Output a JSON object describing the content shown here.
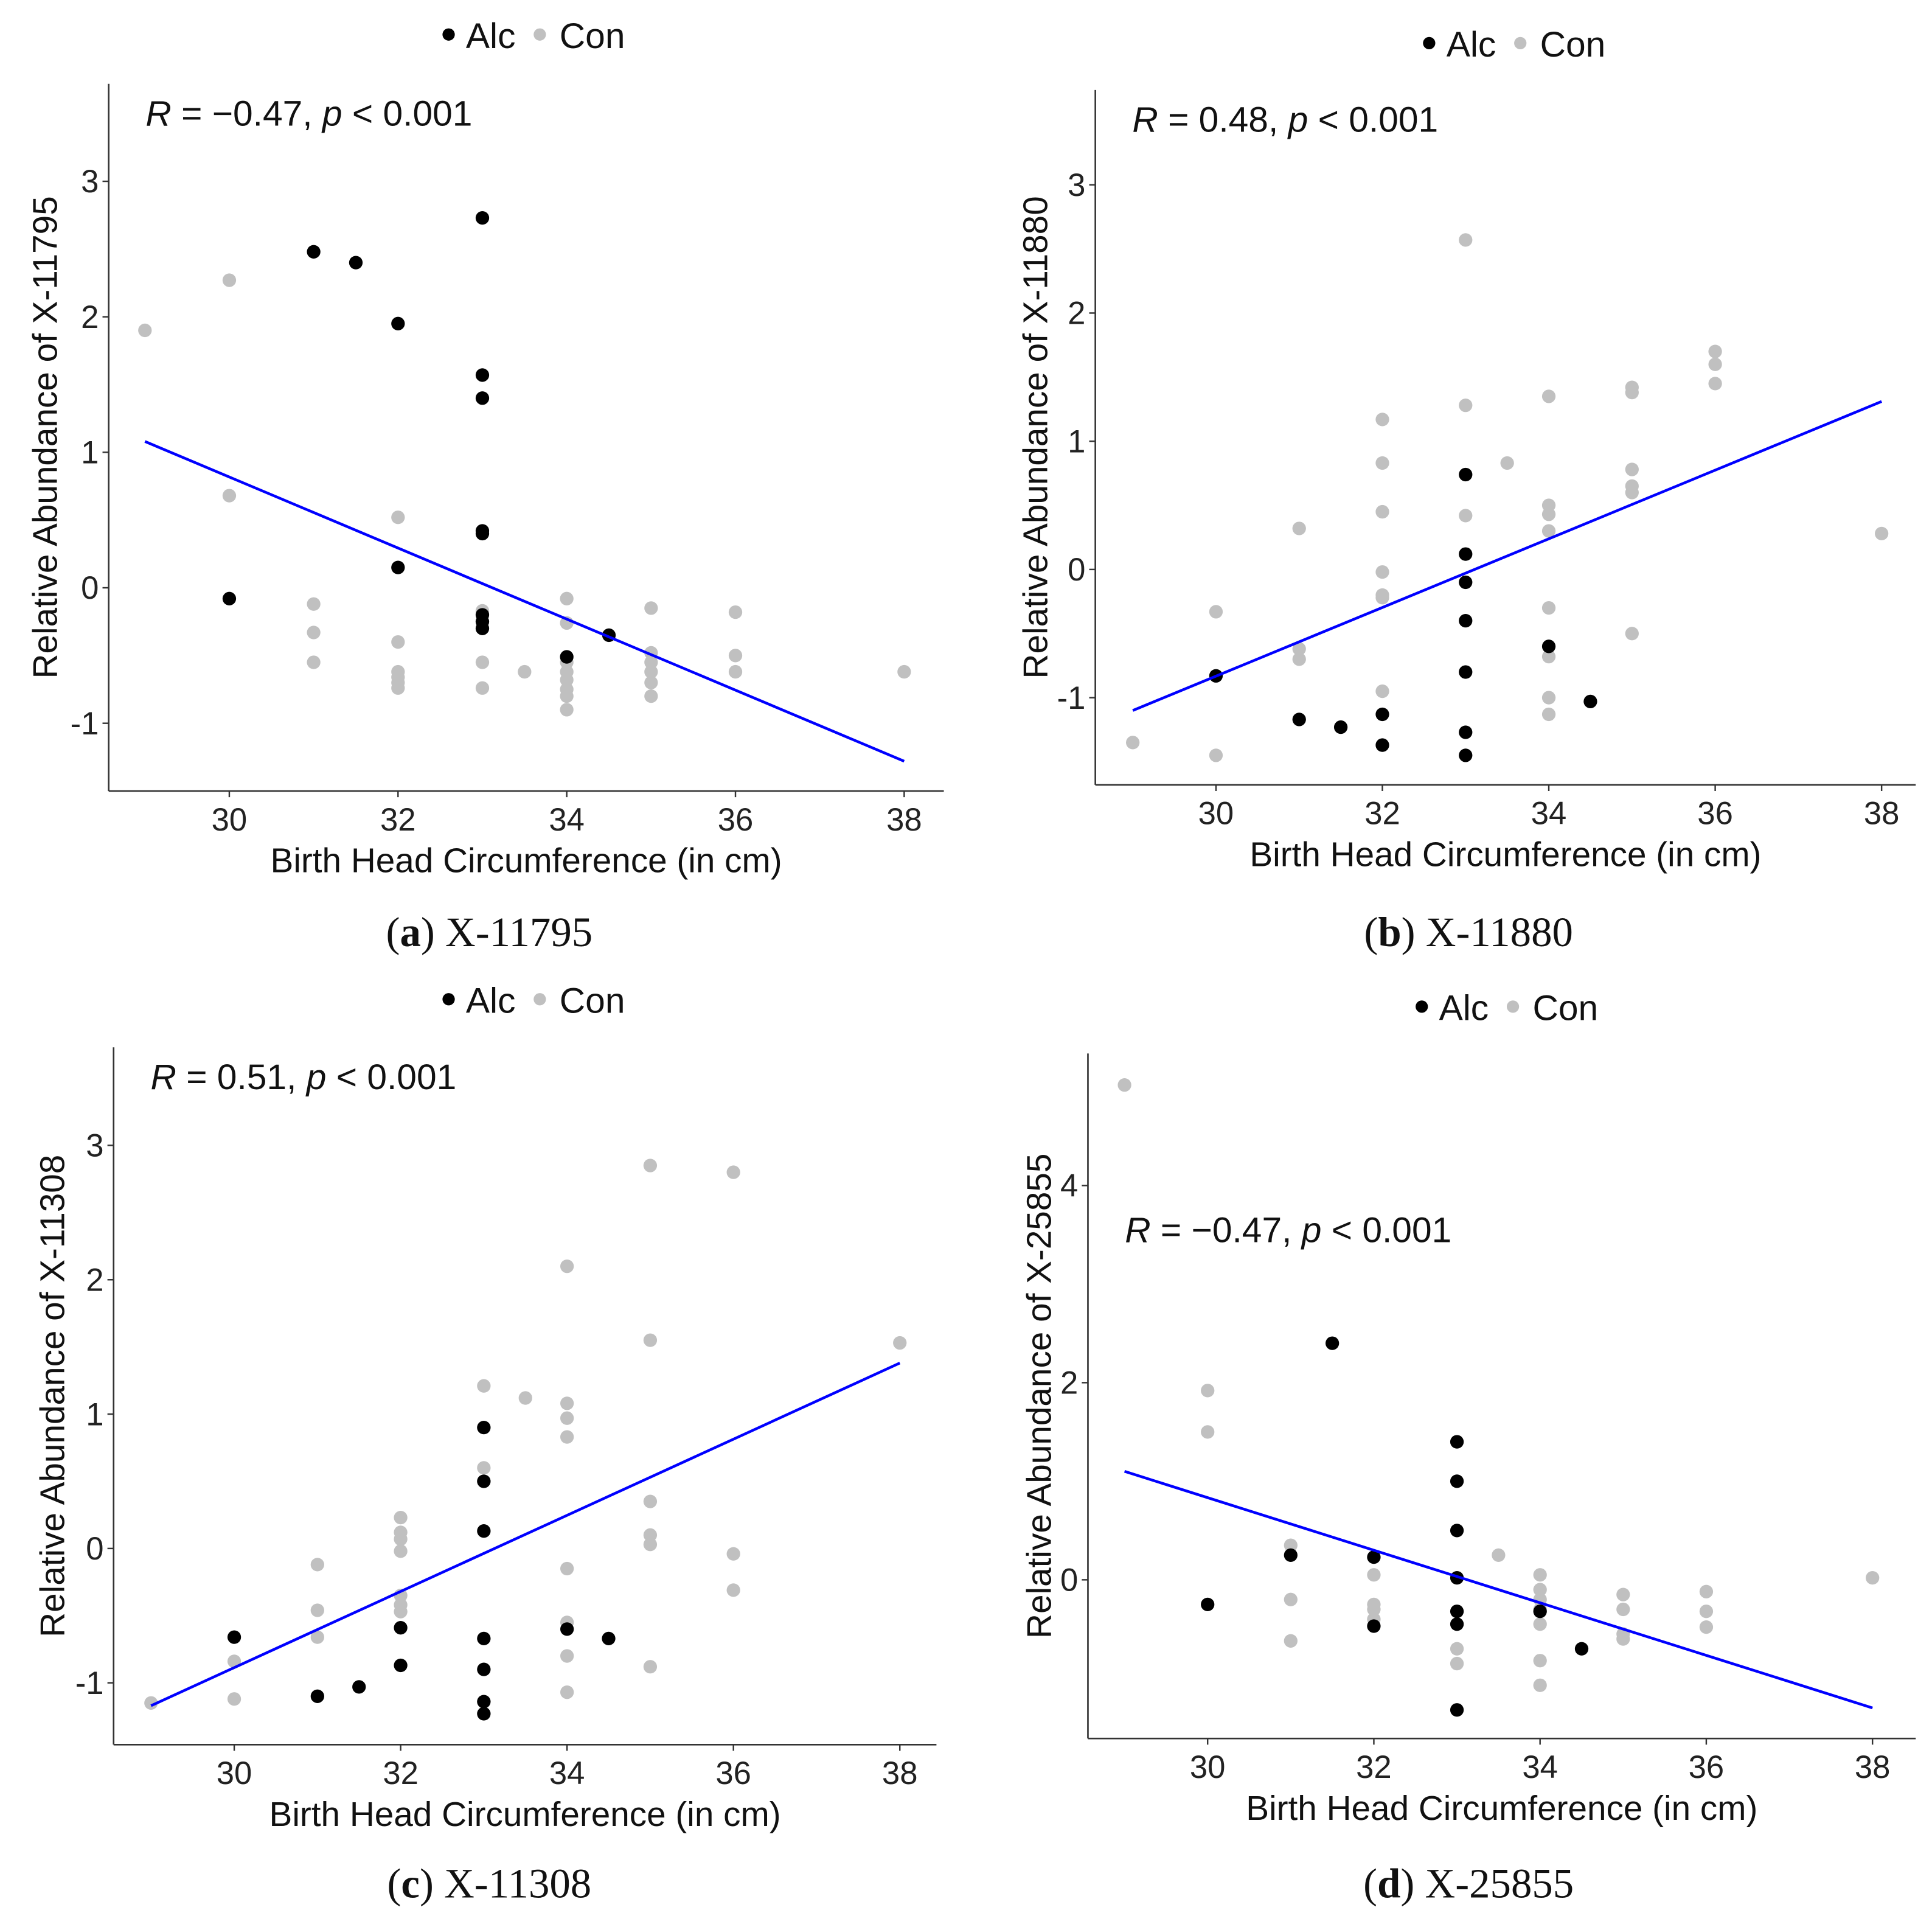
{
  "colors": {
    "alc": "#000000",
    "con": "#c0c0c0",
    "fit": "#0000ff"
  },
  "chart_data": [
    {
      "type": "scatter",
      "caption_letter": "a",
      "caption": "X-11795",
      "stat": "R = −0.47, p < 0.001",
      "xlabel": "Birth Head Circumference (in cm)",
      "ylabel": "Relative Abundance of X-11795",
      "legend": [
        "Alc",
        "Con"
      ],
      "legend_position": "top",
      "xlim": [
        28.57,
        38.47
      ],
      "ylim": [
        -1.5,
        3.72
      ],
      "xticks": [
        30,
        32,
        34,
        36,
        38
      ],
      "yticks": [
        -1,
        0,
        1,
        2,
        3
      ],
      "fit": [
        [
          29,
          1.08
        ],
        [
          38,
          -1.28
        ]
      ],
      "series": [
        {
          "name": "Alc",
          "points": [
            [
              30,
              -0.08
            ],
            [
              31,
              2.48
            ],
            [
              31.5,
              2.4
            ],
            [
              32,
              1.95
            ],
            [
              32,
              0.15
            ],
            [
              33,
              2.73
            ],
            [
              33,
              1.57
            ],
            [
              33,
              1.4
            ],
            [
              33,
              0.42
            ],
            [
              33,
              0.4
            ],
            [
              33,
              -0.2
            ],
            [
              33,
              -0.25
            ],
            [
              33,
              -0.3
            ],
            [
              34,
              -0.51
            ],
            [
              34.5,
              -0.35
            ]
          ]
        },
        {
          "name": "Con",
          "points": [
            [
              29,
              1.9
            ],
            [
              30,
              2.27
            ],
            [
              30,
              0.68
            ],
            [
              31,
              -0.12
            ],
            [
              31,
              -0.33
            ],
            [
              31,
              -0.55
            ],
            [
              32,
              0.52
            ],
            [
              32,
              -0.4
            ],
            [
              32,
              -0.62
            ],
            [
              32,
              -0.66
            ],
            [
              32,
              -0.7
            ],
            [
              32,
              -0.74
            ],
            [
              33,
              -0.17
            ],
            [
              33,
              -0.55
            ],
            [
              33,
              -0.74
            ],
            [
              33.5,
              -0.62
            ],
            [
              34,
              -0.08
            ],
            [
              34,
              -0.26
            ],
            [
              34,
              -0.55
            ],
            [
              34,
              -0.62
            ],
            [
              34,
              -0.68
            ],
            [
              34,
              -0.75
            ],
            [
              34,
              -0.8
            ],
            [
              34,
              -0.9
            ],
            [
              35,
              -0.15
            ],
            [
              35,
              -0.48
            ],
            [
              35,
              -0.55
            ],
            [
              35,
              -0.62
            ],
            [
              35,
              -0.7
            ],
            [
              35,
              -0.8
            ],
            [
              36,
              -0.18
            ],
            [
              36,
              -0.5
            ],
            [
              36,
              -0.62
            ],
            [
              38,
              -0.62
            ]
          ]
        }
      ]
    },
    {
      "type": "scatter",
      "caption_letter": "b",
      "caption": "X-11880",
      "stat": "R = 0.48, p < 0.001",
      "xlabel": "Birth Head Circumference (in cm)",
      "ylabel": "Relative Abundance of X-11880",
      "legend": [
        "Alc",
        "Con"
      ],
      "legend_position": "top",
      "xlim": [
        28.55,
        38.41
      ],
      "ylim": [
        -1.68,
        3.74
      ],
      "xticks": [
        30,
        32,
        34,
        36,
        38
      ],
      "yticks": [
        -1,
        0,
        1,
        2,
        3
      ],
      "fit": [
        [
          29,
          -1.1
        ],
        [
          38,
          1.31
        ]
      ],
      "series": [
        {
          "name": "Alc",
          "points": [
            [
              30,
              -0.83
            ],
            [
              31,
              -1.17
            ],
            [
              31.5,
              -1.23
            ],
            [
              32,
              -1.13
            ],
            [
              32,
              -1.37
            ],
            [
              33,
              0.74
            ],
            [
              33,
              0.12
            ],
            [
              33,
              -0.1
            ],
            [
              33,
              -0.4
            ],
            [
              33,
              -0.8
            ],
            [
              33,
              -1.27
            ],
            [
              33,
              -1.45
            ],
            [
              34,
              -0.6
            ],
            [
              34.5,
              -1.03
            ]
          ]
        },
        {
          "name": "Con",
          "points": [
            [
              29,
              -1.35
            ],
            [
              30,
              -0.33
            ],
            [
              30,
              -1.45
            ],
            [
              31,
              0.32
            ],
            [
              31,
              -0.62
            ],
            [
              31,
              -0.7
            ],
            [
              32,
              1.17
            ],
            [
              32,
              0.83
            ],
            [
              32,
              0.45
            ],
            [
              32,
              -0.02
            ],
            [
              32,
              -0.2
            ],
            [
              32,
              -0.22
            ],
            [
              32,
              -0.95
            ],
            [
              33,
              2.57
            ],
            [
              33,
              1.28
            ],
            [
              33,
              0.42
            ],
            [
              33.5,
              0.83
            ],
            [
              34,
              1.35
            ],
            [
              34,
              0.5
            ],
            [
              34,
              0.43
            ],
            [
              34,
              0.3
            ],
            [
              34,
              -0.3
            ],
            [
              34,
              -0.68
            ],
            [
              34,
              -1.0
            ],
            [
              34,
              -1.13
            ],
            [
              35,
              1.42
            ],
            [
              35,
              1.38
            ],
            [
              35,
              0.78
            ],
            [
              35,
              0.65
            ],
            [
              35,
              0.6
            ],
            [
              35,
              -0.5
            ],
            [
              36,
              1.7
            ],
            [
              36,
              1.6
            ],
            [
              36,
              1.45
            ],
            [
              38,
              0.28
            ]
          ]
        }
      ]
    },
    {
      "type": "scatter",
      "caption_letter": "c",
      "caption": "X-11308",
      "stat": "R = 0.51, p < 0.001",
      "xlabel": "Birth Head Circumference (in cm)",
      "ylabel": "Relative Abundance of X-11308",
      "legend": [
        "Alc",
        "Con"
      ],
      "legend_position": "top",
      "xlim": [
        28.55,
        38.44
      ],
      "ylim": [
        -1.46,
        3.73
      ],
      "xticks": [
        30,
        32,
        34,
        36,
        38
      ],
      "yticks": [
        -1,
        0,
        1,
        2,
        3
      ],
      "fit": [
        [
          29,
          -1.17
        ],
        [
          38,
          1.38
        ]
      ],
      "series": [
        {
          "name": "Alc",
          "points": [
            [
              30,
              -0.66
            ],
            [
              31,
              -1.1
            ],
            [
              31.5,
              -1.03
            ],
            [
              32,
              -0.59
            ],
            [
              32,
              -0.87
            ],
            [
              33,
              0.9
            ],
            [
              33,
              0.5
            ],
            [
              33,
              0.13
            ],
            [
              33,
              -0.67
            ],
            [
              33,
              -0.9
            ],
            [
              33,
              -1.14
            ],
            [
              33,
              -1.23
            ],
            [
              34,
              -0.6
            ],
            [
              34.5,
              -0.67
            ]
          ]
        },
        {
          "name": "Con",
          "points": [
            [
              29,
              -1.15
            ],
            [
              30,
              -0.84
            ],
            [
              30,
              -1.12
            ],
            [
              31,
              -0.12
            ],
            [
              31,
              -0.46
            ],
            [
              31,
              -0.66
            ],
            [
              32,
              0.23
            ],
            [
              32,
              0.12
            ],
            [
              32,
              0.07
            ],
            [
              32,
              -0.02
            ],
            [
              32,
              -0.35
            ],
            [
              32,
              -0.42
            ],
            [
              32,
              -0.47
            ],
            [
              33,
              1.21
            ],
            [
              33,
              0.6
            ],
            [
              33,
              0.5
            ],
            [
              33.5,
              1.12
            ],
            [
              34,
              2.1
            ],
            [
              34,
              1.08
            ],
            [
              34,
              0.97
            ],
            [
              34,
              0.83
            ],
            [
              34,
              -0.15
            ],
            [
              34,
              -0.55
            ],
            [
              34,
              -0.8
            ],
            [
              34,
              -1.07
            ],
            [
              35,
              2.85
            ],
            [
              35,
              1.55
            ],
            [
              35,
              0.35
            ],
            [
              35,
              0.1
            ],
            [
              35,
              0.03
            ],
            [
              35,
              -0.88
            ],
            [
              36,
              2.8
            ],
            [
              36,
              -0.04
            ],
            [
              36,
              -0.31
            ],
            [
              38,
              1.53
            ]
          ]
        }
      ]
    },
    {
      "type": "scatter",
      "caption_letter": "d",
      "caption": "X-25855",
      "stat": "R = −0.47, p < 0.001",
      "xlabel": "Birth Head Circumference (in cm)",
      "ylabel": "Relative Abundance of X-25855",
      "legend": [
        "Alc",
        "Con"
      ],
      "legend_position": "top",
      "xlim": [
        28.56,
        38.52
      ],
      "ylim": [
        -1.61,
        5.34
      ],
      "xticks": [
        30,
        32,
        34,
        36,
        38
      ],
      "yticks": [
        0,
        2,
        4
      ],
      "fit": [
        [
          29,
          1.1
        ],
        [
          38,
          -1.3
        ]
      ],
      "series": [
        {
          "name": "Alc",
          "points": [
            [
              30,
              -0.25
            ],
            [
              31,
              0.25
            ],
            [
              31.5,
              2.4
            ],
            [
              32,
              0.23
            ],
            [
              32,
              -0.47
            ],
            [
              33,
              1.4
            ],
            [
              33,
              1.0
            ],
            [
              33,
              0.5
            ],
            [
              33,
              0.02
            ],
            [
              33,
              -0.32
            ],
            [
              33,
              -0.45
            ],
            [
              33,
              -1.32
            ],
            [
              34,
              -0.32
            ],
            [
              34.5,
              -0.7
            ]
          ]
        },
        {
          "name": "Con",
          "points": [
            [
              29,
              5.02
            ],
            [
              30,
              1.92
            ],
            [
              30,
              1.5
            ],
            [
              31,
              0.35
            ],
            [
              31,
              -0.2
            ],
            [
              31,
              -0.62
            ],
            [
              32,
              0.05
            ],
            [
              32,
              -0.25
            ],
            [
              32,
              -0.3
            ],
            [
              32,
              -0.4
            ],
            [
              33,
              -0.7
            ],
            [
              33,
              -0.85
            ],
            [
              33.5,
              0.25
            ],
            [
              34,
              0.05
            ],
            [
              34,
              -0.1
            ],
            [
              34,
              -0.2
            ],
            [
              34,
              -0.3
            ],
            [
              34,
              -0.45
            ],
            [
              34,
              -0.82
            ],
            [
              34,
              -1.07
            ],
            [
              35,
              -0.15
            ],
            [
              35,
              -0.3
            ],
            [
              35,
              -0.55
            ],
            [
              35,
              -0.6
            ],
            [
              36,
              -0.12
            ],
            [
              36,
              -0.32
            ],
            [
              36,
              -0.48
            ],
            [
              38,
              0.02
            ]
          ]
        }
      ]
    }
  ]
}
